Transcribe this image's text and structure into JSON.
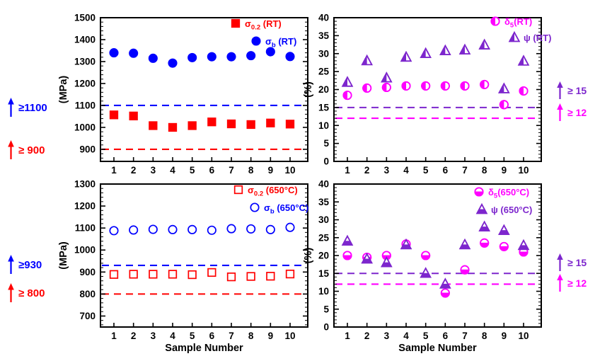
{
  "figure": {
    "background": "#ffffff",
    "xlabel_shared": "Sample Number"
  },
  "colors": {
    "red": "#ff0000",
    "blue": "#0000ff",
    "magenta": "#ff00ff",
    "purple": "#7d26cd",
    "axis": "#000000"
  },
  "chart_data": [
    {
      "id": "strength-rt",
      "type": "scatter",
      "title": "",
      "xlabel": "",
      "ylabel": "(MPa)",
      "x": [
        1,
        2,
        3,
        4,
        5,
        6,
        7,
        8,
        9,
        10
      ],
      "ylim": [
        845,
        1500
      ],
      "yticks": [
        900,
        1000,
        1100,
        1200,
        1300,
        1400,
        1500
      ],
      "y_minor_step": 20,
      "grid": false,
      "legend_position": "top-right",
      "series": [
        {
          "key": "sigma02-rt",
          "name": "sigma_0.2 (RT)",
          "marker": "square",
          "fillmode": "filled",
          "color": "#ff0000",
          "legend": {
            "main": "σ",
            "sub": "0.2",
            "suffix": " (RT)"
          },
          "values": [
            1057,
            1052,
            1008,
            1000,
            1008,
            1025,
            1016,
            1013,
            1020,
            1015
          ]
        },
        {
          "key": "sigmab-rt",
          "name": "sigma_b (RT)",
          "marker": "circle",
          "fillmode": "filled",
          "color": "#0000ff",
          "legend": {
            "main": "σ",
            "sub": "b",
            "suffix": " (RT)"
          },
          "values": [
            1340,
            1338,
            1315,
            1293,
            1318,
            1322,
            1322,
            1327,
            1345,
            1323
          ]
        }
      ],
      "ref_lines": [
        {
          "value": 1100,
          "color": "#0000ff"
        },
        {
          "value": 900,
          "color": "#ff0000"
        }
      ]
    },
    {
      "id": "ductility-rt",
      "type": "scatter",
      "title": "",
      "xlabel": "",
      "ylabel": "(%)",
      "x": [
        1,
        2,
        3,
        4,
        5,
        6,
        7,
        8,
        9,
        10
      ],
      "ylim": [
        0,
        40
      ],
      "yticks": [
        0,
        5,
        10,
        15,
        20,
        25,
        30,
        35,
        40
      ],
      "y_minor_step": 1,
      "grid": false,
      "legend_position": "top-right",
      "series": [
        {
          "key": "delta5-rt",
          "name": "delta_5 (RT)",
          "marker": "circle",
          "fillmode": "half-left",
          "color": "#ff00ff",
          "err": 0.5,
          "legend": {
            "main": "δ",
            "sub": "5",
            "suffix": "(RT)"
          },
          "values": [
            18.4,
            20.4,
            20.6,
            21,
            21,
            21,
            21,
            21.4,
            15.8,
            19.6
          ]
        },
        {
          "key": "psi-rt",
          "name": "psi (RT)",
          "marker": "triangle",
          "fillmode": "half-left",
          "color": "#7d26cd",
          "err": 0.5,
          "legend": {
            "main": "ψ",
            "sub": "",
            "suffix": " (RT)"
          },
          "values": [
            22,
            28,
            23.2,
            29,
            30,
            30.8,
            31,
            32.4,
            20.2,
            27.9
          ]
        }
      ],
      "ref_lines": [
        {
          "value": 15,
          "color": "#7d26cd"
        },
        {
          "value": 12,
          "color": "#ff00ff"
        }
      ]
    },
    {
      "id": "strength-650",
      "type": "scatter",
      "title": "",
      "xlabel": "Sample Number",
      "ylabel": "(MPa)",
      "x": [
        1,
        2,
        3,
        4,
        5,
        6,
        7,
        8,
        9,
        10
      ],
      "ylim": [
        650,
        1300
      ],
      "yticks": [
        700,
        800,
        900,
        1000,
        1100,
        1200,
        1300
      ],
      "y_minor_step": 20,
      "grid": false,
      "legend_position": "top-right",
      "series": [
        {
          "key": "sigma02-650",
          "name": "sigma_0.2 (650C)",
          "marker": "square",
          "fillmode": "open",
          "color": "#ff0000",
          "legend": {
            "main": "σ",
            "sub": "0.2",
            "suffix": " (650°C)"
          },
          "values": [
            889,
            890,
            890,
            890,
            888,
            898,
            878,
            880,
            881,
            891
          ]
        },
        {
          "key": "sigmab-650",
          "name": "sigma_b (650C)",
          "marker": "circle",
          "fillmode": "open",
          "color": "#0000ff",
          "legend": {
            "main": "σ",
            "sub": "b",
            "suffix": " (650°C)"
          },
          "values": [
            1088,
            1091,
            1094,
            1093,
            1093,
            1090,
            1097,
            1096,
            1093,
            1103
          ]
        }
      ],
      "ref_lines": [
        {
          "value": 930,
          "color": "#0000ff"
        },
        {
          "value": 800,
          "color": "#ff0000"
        }
      ]
    },
    {
      "id": "ductility-650",
      "type": "scatter",
      "title": "",
      "xlabel": "Sample Number",
      "ylabel": "(%)",
      "x": [
        1,
        2,
        3,
        4,
        5,
        6,
        7,
        8,
        9,
        10
      ],
      "ylim": [
        0,
        40
      ],
      "yticks": [
        0,
        5,
        10,
        15,
        20,
        25,
        30,
        35,
        40
      ],
      "y_minor_step": 1,
      "grid": false,
      "legend_position": "top-right",
      "series": [
        {
          "key": "delta5-650",
          "name": "delta_5 (650C)",
          "marker": "circle",
          "fillmode": "half-bottom",
          "color": "#ff00ff",
          "err": 0.5,
          "legend": {
            "main": "δ",
            "sub": "5",
            "suffix": "(650°C)"
          },
          "values": [
            20,
            19.5,
            20,
            23.2,
            20,
            9.5,
            16,
            23.5,
            22.5,
            21
          ]
        },
        {
          "key": "psi-650",
          "name": "psi (650C)",
          "marker": "triangle",
          "fillmode": "half-bottom",
          "color": "#7d26cd",
          "err": 0.5,
          "legend": {
            "main": "ψ",
            "sub": "",
            "suffix": " (650°C)"
          },
          "values": [
            24,
            19,
            18,
            23,
            15,
            12,
            23,
            28,
            27,
            22.8
          ]
        }
      ],
      "ref_lines": [
        {
          "value": 15,
          "color": "#7d26cd"
        },
        {
          "value": 12,
          "color": "#ff00ff"
        }
      ]
    }
  ],
  "annotations": {
    "left_top": [
      {
        "text": "≥1100",
        "color": "#0000ff"
      },
      {
        "text": "≥ 900",
        "color": "#ff0000"
      }
    ],
    "left_bottom": [
      {
        "text": "≥930",
        "color": "#0000ff"
      },
      {
        "text": "≥ 800",
        "color": "#ff0000"
      }
    ],
    "right_top": [
      {
        "text": "≥ 15",
        "color": "#7d26cd"
      },
      {
        "text": "≥ 12",
        "color": "#ff00ff"
      }
    ],
    "right_bottom": [
      {
        "text": "≥ 15",
        "color": "#7d26cd"
      },
      {
        "text": "≥ 12",
        "color": "#ff00ff"
      }
    ]
  }
}
